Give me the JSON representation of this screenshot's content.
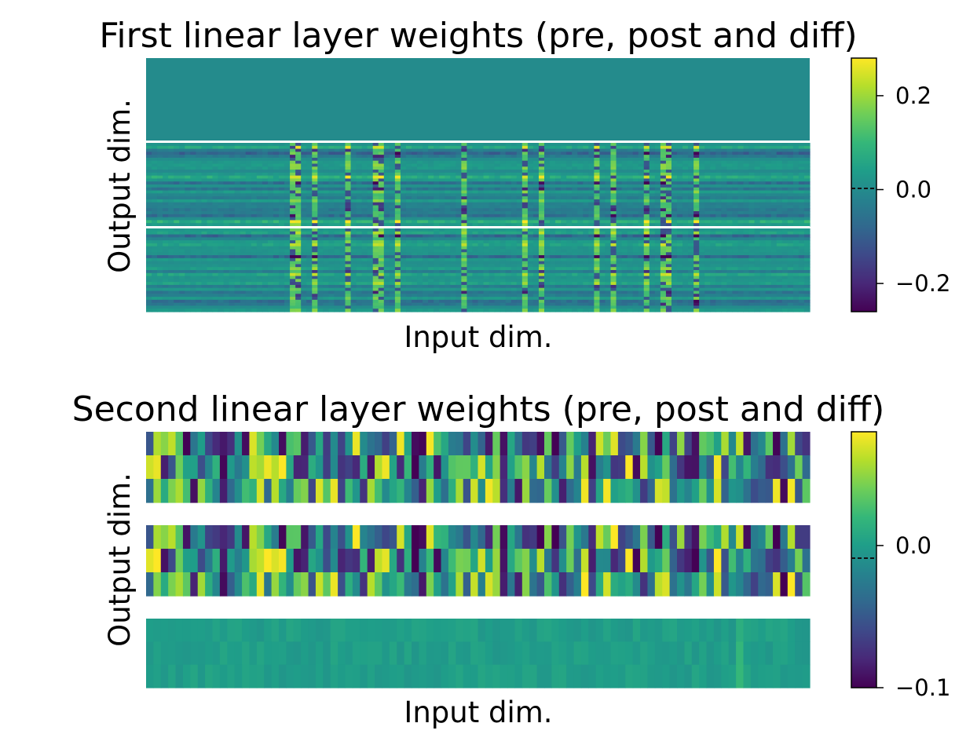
{
  "colormap": {
    "name": "viridis",
    "stops": [
      "#440154",
      "#482878",
      "#3e4989",
      "#31688e",
      "#26828e",
      "#1f9e89",
      "#35b779",
      "#6ece58",
      "#b5de2b",
      "#fde725"
    ]
  },
  "chart_data": [
    {
      "type": "heatmap",
      "title": "First linear layer weights (pre, post and diff)",
      "xlabel": "Input dim.",
      "ylabel": "Output dim.",
      "blocks": [
        "pre",
        "post",
        "diff"
      ],
      "block_order_top_to_bottom": [
        "diff",
        "post",
        "pre"
      ],
      "colorbar": {
        "range": [
          -0.26,
          0.28
        ],
        "ticks": [
          -0.2,
          0.0,
          0.2
        ],
        "tick_labels": [
          "−0.2",
          "0.0",
          "0.2"
        ]
      },
      "description_values": {
        "diff_block_value": 0.0,
        "weight_extremes": [
          -0.26,
          0.28
        ]
      }
    },
    {
      "type": "heatmap",
      "title": "Second linear layer weights (pre, post and diff)",
      "xlabel": "Input dim.",
      "ylabel": "Output dim.",
      "blocks": [
        "pre",
        "post",
        "diff"
      ],
      "block_order_top_to_bottom": [
        "pre",
        "post",
        "diff"
      ],
      "rows_per_block": 3,
      "colorbar": {
        "range": [
          -0.1,
          0.08
        ],
        "ticks": [
          -0.1,
          0.0
        ],
        "tick_labels": [
          "−0.1",
          "0.0"
        ]
      },
      "description_values": {
        "diff_block_value": 0.0,
        "weight_extremes": [
          -0.1,
          0.08
        ]
      }
    }
  ]
}
